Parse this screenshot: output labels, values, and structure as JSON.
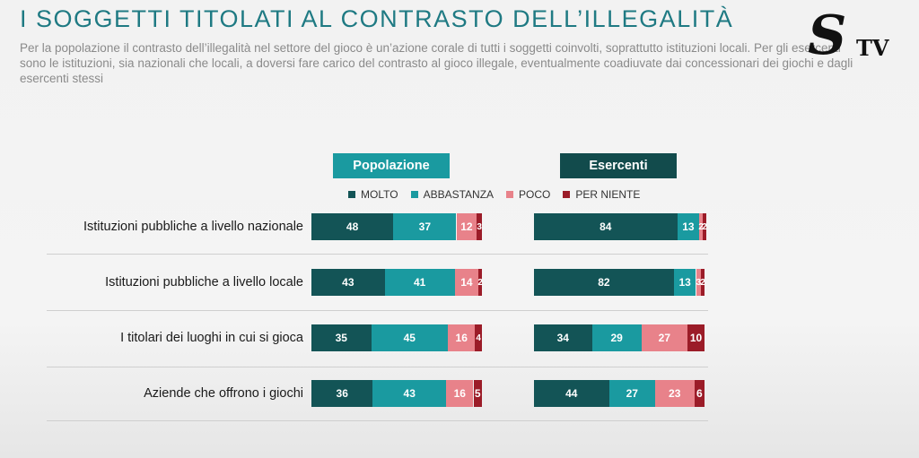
{
  "header": {
    "title": "I SOGGETTI TITOLATI AL CONTRASTO DELL’ILLEGALITÀ",
    "subtitle": "Per la popolazione il contrasto dell’illegalità nel settore del gioco è un’azione corale di tutti i soggetti coinvolti, soprattutto istituzioni locali. Per gli esercenti sono le istituzioni, sia nazionali che locali, a doversi fare carico del contrasto al gioco illegale, eventualmente coadiuvate dai concessionari dei giochi e dagli esercenti stessi"
  },
  "logo": {
    "text": "STV"
  },
  "chart_data": {
    "type": "bar",
    "orientation": "horizontal-stacked",
    "panels": [
      "Popolazione",
      "Esercenti"
    ],
    "categories": [
      "Istituzioni pubbliche a livello nazionale",
      "Istituzioni pubbliche a livello locale",
      "I titolari dei luoghi in cui si gioca",
      "Aziende che offrono i giochi"
    ],
    "legend": [
      "MOLTO",
      "ABBASTANZA",
      "POCO",
      "PER NIENTE"
    ],
    "legend_position": "top",
    "colors": [
      "#135456",
      "#1a9aa0",
      "#e8828a",
      "#9b1c28"
    ],
    "series": {
      "Popolazione": [
        [
          48,
          37,
          12,
          3
        ],
        [
          43,
          41,
          14,
          2
        ],
        [
          35,
          45,
          16,
          4
        ],
        [
          36,
          43,
          16,
          5
        ]
      ],
      "Esercenti": [
        [
          84,
          13,
          2,
          2
        ],
        [
          82,
          13,
          3,
          2
        ],
        [
          34,
          29,
          27,
          10
        ],
        [
          44,
          27,
          23,
          6
        ]
      ]
    },
    "xlim": [
      0,
      100
    ]
  }
}
